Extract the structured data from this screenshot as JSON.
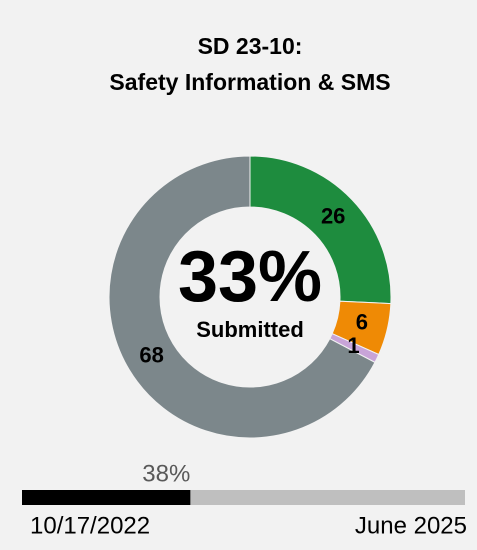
{
  "chart_data": {
    "type": "donut",
    "title": [
      "SD 23-10:",
      "Safety Information & SMS"
    ],
    "categories": [
      null,
      null,
      null,
      null
    ],
    "values": [
      26,
      6,
      1,
      68
    ],
    "colors": [
      "#1e8c3e",
      "#ef8a05",
      "#c8a4d8",
      "#7c878b"
    ],
    "center_value": 33,
    "center_value_label": "33%",
    "center_caption": "Submitted",
    "progress": {
      "value": 38,
      "value_label": "38%",
      "lim": [
        0,
        100
      ],
      "start_label": "10/17/2022",
      "end_label": "June 2025",
      "fill_color": "#000000",
      "track_color": "#bfbfbf"
    }
  }
}
